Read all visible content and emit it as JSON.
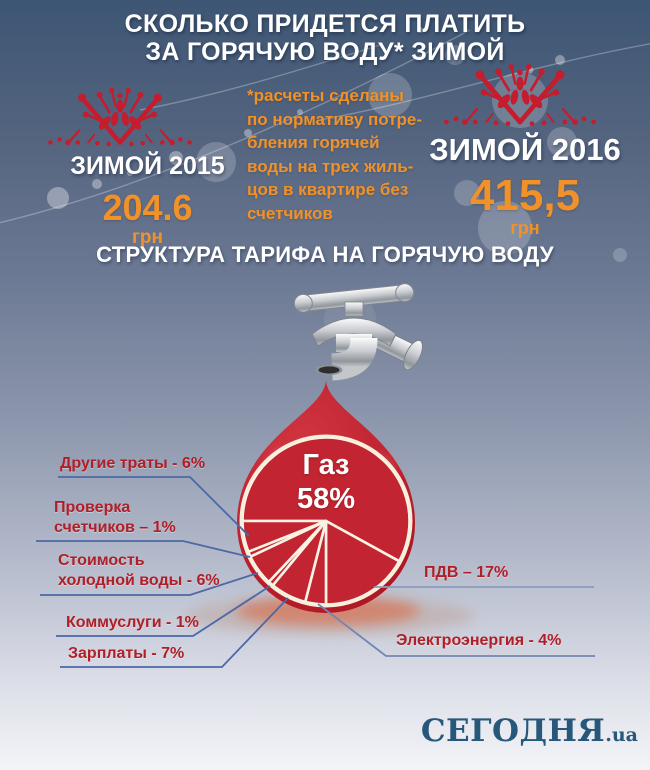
{
  "header": {
    "title_line1": "СКОЛЬКО ПРИДЕТСЯ ПЛАТИТЬ",
    "title_line2": "ЗА ГОРЯЧУЮ ВОДУ* ЗИМОЙ"
  },
  "note": "*расчеты сделаны\nпо нормативу потре-\nбления горячей\nводы на трех жиль-\nцов в квартире без\nсчетчиков",
  "winter2015": {
    "label": "ЗИМОЙ 2015",
    "amount": "204.6",
    "unit": "грн"
  },
  "winter2016": {
    "label": "ЗИМОЙ 2016",
    "amount": "415,5",
    "unit": "грн"
  },
  "section_title": "СТРУКТУРА ТАРИФА НА ГОРЯЧУЮ ВОДУ",
  "chart_data": [
    {
      "type": "bar",
      "title": "СКОЛЬКО ПРИДЕТСЯ ПЛАТИТЬ ЗА ГОРЯЧУЮ ВОДУ ЗИМОЙ",
      "categories": [
        "ЗИМОЙ 2015",
        "ЗИМОЙ 2016"
      ],
      "values": [
        204.6,
        415.5
      ],
      "ylabel": "грн"
    },
    {
      "type": "pie",
      "title": "СТРУКТУРА ТАРИФА НА ГОРЯЧУЮ ВОДУ",
      "unit": "%",
      "start_angle_deg": 180,
      "direction": "clockwise",
      "slices": [
        {
          "name": "Газ",
          "value": 58
        },
        {
          "name": "ПДВ",
          "value": 17
        },
        {
          "name": "Электроэнергия",
          "value": 4
        },
        {
          "name": "Зарплаты",
          "value": 7
        },
        {
          "name": "Коммуслуги",
          "value": 1
        },
        {
          "name": "Стоимость холодной воды",
          "value": 6
        },
        {
          "name": "Проверка счетчиков",
          "value": 1
        },
        {
          "name": "Другие траты",
          "value": 6
        }
      ]
    }
  ],
  "pie_labels": {
    "gas": "Газ\n58%",
    "drugie": "Другие траты - 6%",
    "proverka": "Проверка\nсчетчиков – 1%",
    "stoimost": "Стоимость\nхолодной воды - 6%",
    "kommuslugi": "Коммуслуги - 1%",
    "zarplaty": "Зарплаты - 7%",
    "pdv": "ПДВ – 17%",
    "electro": "Электроэнергия - 4%"
  },
  "footer": {
    "logo_main": "СЕГОДНЯ",
    "logo_suffix": ".ua"
  },
  "colors": {
    "accent_orange": "#f0912a",
    "drop_red": "#c22531",
    "snowflake_red": "#c41d2e",
    "label_red": "#b01f28",
    "callout_blue": "#4c68a5",
    "logo_blue": "#27587b"
  }
}
